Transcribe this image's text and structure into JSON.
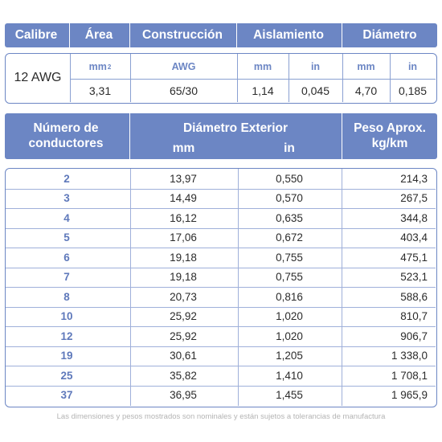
{
  "top_header": {
    "calibre": "Calibre",
    "area": "Área",
    "construccion": "Construcción",
    "aislamiento": "Aislamiento",
    "diametro": "Diámetro"
  },
  "spec": {
    "gauge": "12 AWG",
    "area_unit": "mm",
    "area_unit_sup": "2",
    "construccion_unit": "AWG",
    "aisl_mm_unit": "mm",
    "aisl_in_unit": "in",
    "diam_mm_unit": "mm",
    "diam_in_unit": "in",
    "area_value": "3,31",
    "construccion_value": "65/30",
    "aisl_mm_value": "1,14",
    "aisl_in_value": "0,045",
    "diam_mm_value": "4,70",
    "diam_in_value": "0,185"
  },
  "table_header": {
    "conductores_line1": "Número de",
    "conductores_line2": "conductores",
    "diametro_exterior": "Diámetro Exterior",
    "mm": "mm",
    "in": "in",
    "peso_line1": "Peso Aprox.",
    "peso_line2": "kg/km"
  },
  "rows": [
    {
      "n": "2",
      "mm": "13,97",
      "in": "0,550",
      "kg": "214,3"
    },
    {
      "n": "3",
      "mm": "14,49",
      "in": "0,570",
      "kg": "267,5"
    },
    {
      "n": "4",
      "mm": "16,12",
      "in": "0,635",
      "kg": "344,8"
    },
    {
      "n": "5",
      "mm": "17,06",
      "in": "0,672",
      "kg": "403,4"
    },
    {
      "n": "6",
      "mm": "19,18",
      "in": "0,755",
      "kg": "475,1"
    },
    {
      "n": "7",
      "mm": "19,18",
      "in": "0,755",
      "kg": "523,1"
    },
    {
      "n": "8",
      "mm": "20,73",
      "in": "0,816",
      "kg": "588,6"
    },
    {
      "n": "10",
      "mm": "25,92",
      "in": "1,020",
      "kg": "810,7"
    },
    {
      "n": "12",
      "mm": "25,92",
      "in": "1,020",
      "kg": "906,7"
    },
    {
      "n": "19",
      "mm": "30,61",
      "in": "1,205",
      "kg": "1 338,0"
    },
    {
      "n": "25",
      "mm": "35,82",
      "in": "1,410",
      "kg": "1 708,1"
    },
    {
      "n": "37",
      "mm": "36,95",
      "in": "1,455",
      "kg": "1 965,9"
    }
  ],
  "footnote": "Las dimensiones y pesos mostrados son nominales y están sujetos a tolerancias de manufactura",
  "colors": {
    "header_bg": "#6c86c4",
    "accent_text": "#5f79bb",
    "grid_line": "#9fb0da"
  }
}
